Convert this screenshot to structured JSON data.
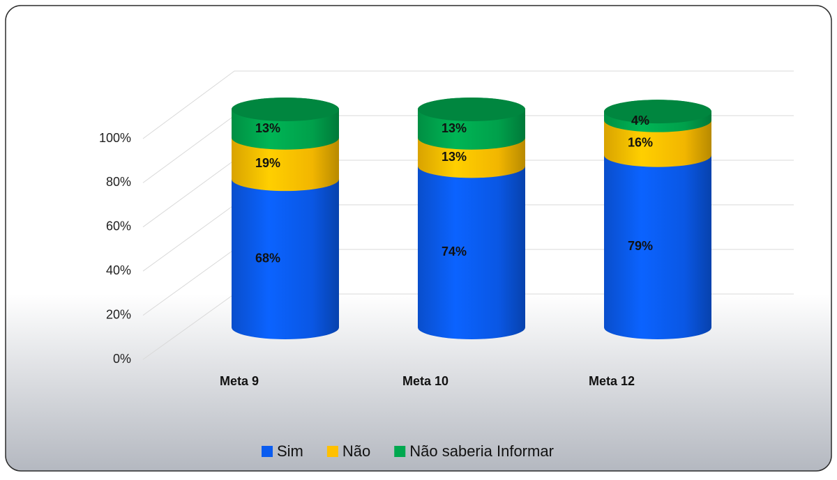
{
  "chart_data": {
    "type": "bar3d_stacked",
    "categories": [
      "Meta 9",
      "Meta 10",
      "Meta 12"
    ],
    "series": [
      {
        "name": "Sim",
        "color": "#0a5cf0",
        "values": [
          68,
          74,
          79
        ],
        "value_labels": [
          "68%",
          "74%",
          "79%"
        ]
      },
      {
        "name": "Não",
        "color": "#ffc000",
        "values": [
          19,
          13,
          16
        ],
        "value_labels": [
          "19%",
          "13%",
          "16%"
        ]
      },
      {
        "name": "Não saberia Informar",
        "color": "#00a84f",
        "values": [
          13,
          13,
          4
        ],
        "value_labels": [
          "13%",
          "13%",
          "4%"
        ]
      }
    ],
    "ylim": [
      0,
      100
    ],
    "yticks": [
      {
        "value": 0,
        "label": "0%"
      },
      {
        "value": 20,
        "label": "20%"
      },
      {
        "value": 40,
        "label": "40%"
      },
      {
        "value": 60,
        "label": "60%"
      },
      {
        "value": 80,
        "label": "80%"
      },
      {
        "value": 100,
        "label": "100%"
      }
    ],
    "grid": true,
    "legend": "bottom"
  }
}
